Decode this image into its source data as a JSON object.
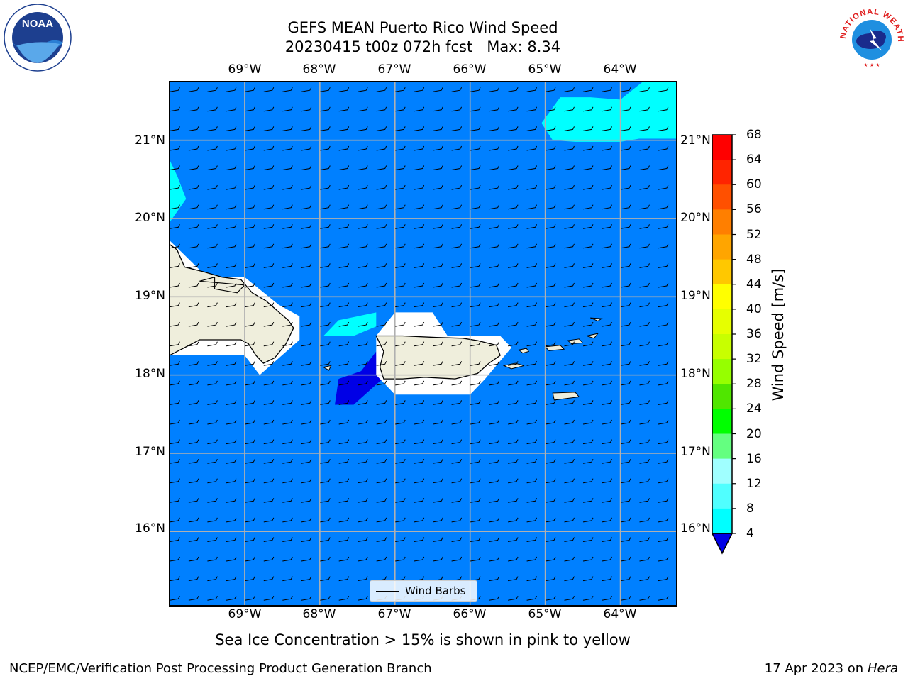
{
  "title": {
    "line1": "GEFS MEAN Puerto Rico Wind Speed",
    "line2": "20230415 t00z 072h fcst   Max: 8.34"
  },
  "logos": {
    "left": {
      "icon": "noaa-logo",
      "text": "NOAA"
    },
    "right": {
      "icon": "nws-logo",
      "text": "NATIONAL WEATHER SERVICE"
    }
  },
  "map": {
    "lon_labels": [
      "69°W",
      "68°W",
      "67°W",
      "66°W",
      "65°W",
      "64°W"
    ],
    "lat_labels": [
      "21°N",
      "20°N",
      "19°N",
      "18°N",
      "17°N",
      "16°N"
    ],
    "lon_range": [
      -70,
      -63.25
    ],
    "lat_range": [
      15.05,
      21.75
    ],
    "lon_gridlines": [
      -69,
      -68,
      -67,
      -66,
      -65,
      -64
    ],
    "lat_gridlines": [
      21,
      20,
      19,
      18,
      17,
      16
    ],
    "colors": {
      "ocean_base": "#0080ff",
      "fill_8_12": "#00ffff",
      "fill_below_4": "#0000e6",
      "land": "#efeedc",
      "gridline": "#b0b0b0"
    },
    "barbs": {
      "lon_step": 0.25,
      "lat_step": 0.25,
      "direction": "easterly"
    }
  },
  "colorbar": {
    "label": "Wind Speed [m/s]",
    "ticks": [
      "68",
      "64",
      "60",
      "56",
      "52",
      "48",
      "44",
      "40",
      "36",
      "32",
      "28",
      "24",
      "20",
      "16",
      "12",
      "8",
      "4"
    ],
    "colors": [
      "#ff0000",
      "#ff2400",
      "#ff5000",
      "#ff7f00",
      "#ffa500",
      "#ffc800",
      "#ffff00",
      "#e6ff00",
      "#c8ff00",
      "#96ff00",
      "#50e600",
      "#00ff00",
      "#64ff80",
      "#a0ffff",
      "#50ffff",
      "#00ffff",
      "#0080ff"
    ],
    "extend_color": "#0000e6"
  },
  "legend": {
    "label": "Wind Barbs"
  },
  "footnote": "Sea Ice Concentration > 15% is shown in pink to yellow",
  "credits": {
    "left": "NCEP/EMC/Verification Post Processing Product Generation Branch",
    "right_prefix": "17 Apr 2023 on ",
    "right_host": "Hera"
  }
}
